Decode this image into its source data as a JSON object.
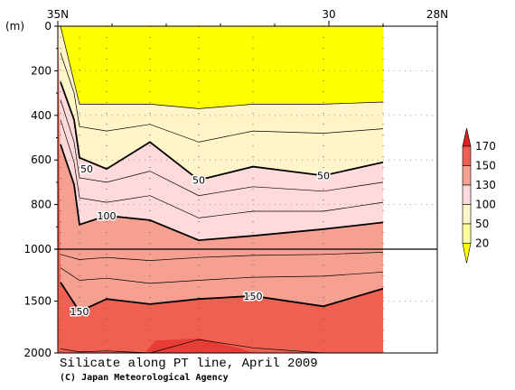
{
  "chart_data": {
    "type": "heatmap",
    "title": "Silicate along PT line, April 2009",
    "credit": "(C) Japan Meteorological Agency",
    "x_tick_labels": [
      {
        "value": 35,
        "label": "35N"
      },
      {
        "value": 30,
        "label": "30"
      },
      {
        "value": 28,
        "label": "28N"
      }
    ],
    "x_range": [
      35,
      28
    ],
    "ylabel": "(m)",
    "y_ticks": [
      {
        "depth": 0,
        "label": "0"
      },
      {
        "depth": 200,
        "label": "200"
      },
      {
        "depth": 400,
        "label": "400"
      },
      {
        "depth": 600,
        "label": "600"
      },
      {
        "depth": 800,
        "label": "800"
      },
      {
        "depth": 1000,
        "label": "1000"
      },
      {
        "depth": 1500,
        "label": "1500"
      },
      {
        "depth": 2000,
        "label": "2000"
      }
    ],
    "y_axis_note": "depth axis stretched 0-1000 m, compressed 1000-2000 m",
    "stations_lat": [
      34.95,
      34.6,
      34.1,
      33.3,
      32.4,
      31.4,
      30.1,
      29.0
    ],
    "data_extent_lat": [
      35,
      29
    ],
    "contour_levels_labeled": [
      50,
      100,
      150
    ],
    "contours": [
      {
        "value": 50,
        "label": "50",
        "lat": [
          34.95,
          34.7,
          34.6,
          34.1,
          33.3,
          32.4,
          31.4,
          30.1,
          29.0
        ],
        "depth": [
          250,
          420,
          590,
          640,
          520,
          690,
          630,
          670,
          610
        ]
      },
      {
        "value": 100,
        "label": "100",
        "lat": [
          34.95,
          34.7,
          34.6,
          34.1,
          33.3,
          32.4,
          31.4,
          30.1,
          29.0
        ],
        "depth": [
          530,
          710,
          890,
          850,
          870,
          960,
          940,
          910,
          880
        ]
      },
      {
        "value": 150,
        "label": "150",
        "lat": [
          34.95,
          34.6,
          34.1,
          33.3,
          32.4,
          31.4,
          30.1,
          29.0
        ],
        "depth": [
          1320,
          1600,
          1480,
          1530,
          1480,
          1450,
          1550,
          1380
        ]
      }
    ],
    "thin_contours": [
      {
        "lat": [
          34.95,
          34.6,
          34.1,
          33.3,
          32.4,
          31.4,
          30.1,
          29.0
        ],
        "depth": [
          0,
          350,
          350,
          350,
          370,
          350,
          350,
          340
        ]
      },
      {
        "lat": [
          34.95,
          34.7,
          34.6,
          34.1,
          33.3,
          32.4,
          31.4,
          30.1,
          29.0
        ],
        "depth": [
          120,
          300,
          450,
          470,
          440,
          520,
          470,
          480,
          460
        ]
      },
      {
        "lat": [
          34.95,
          34.7,
          34.6,
          34.1,
          33.3,
          32.4,
          31.4,
          30.1,
          29.0
        ],
        "depth": [
          330,
          520,
          680,
          700,
          650,
          760,
          720,
          740,
          700
        ]
      },
      {
        "lat": [
          34.95,
          34.7,
          34.6,
          34.1,
          33.3,
          32.4,
          31.4,
          30.1,
          29.0
        ],
        "depth": [
          420,
          610,
          770,
          790,
          760,
          860,
          830,
          830,
          790
        ]
      },
      {
        "lat": [
          34.95,
          34.6,
          34.1,
          33.3,
          32.4,
          31.4,
          30.1,
          29.0
        ],
        "depth": [
          1050,
          1100,
          1080,
          1110,
          1080,
          1060,
          1050,
          1030
        ]
      },
      {
        "lat": [
          34.95,
          34.6,
          34.1,
          33.3,
          32.4,
          31.4,
          30.1,
          29.0
        ],
        "depth": [
          1180,
          1300,
          1280,
          1330,
          1300,
          1270,
          1260,
          1220
        ]
      },
      {
        "lat": [
          34.95,
          34.6,
          34.1,
          33.3,
          32.4,
          31.4,
          30.1,
          29.0
        ],
        "depth": [
          1960,
          1990,
          1980,
          2000,
          1870,
          1950,
          2000,
          2000
        ]
      }
    ],
    "colorbar": {
      "levels": [
        "20",
        "50",
        "100",
        "130",
        "150",
        "170"
      ],
      "colors": [
        "#ffff00",
        "#ffff99",
        "#fff5c8",
        "#ffdada",
        "#f5a090",
        "#f06050",
        "#e02020"
      ]
    }
  }
}
